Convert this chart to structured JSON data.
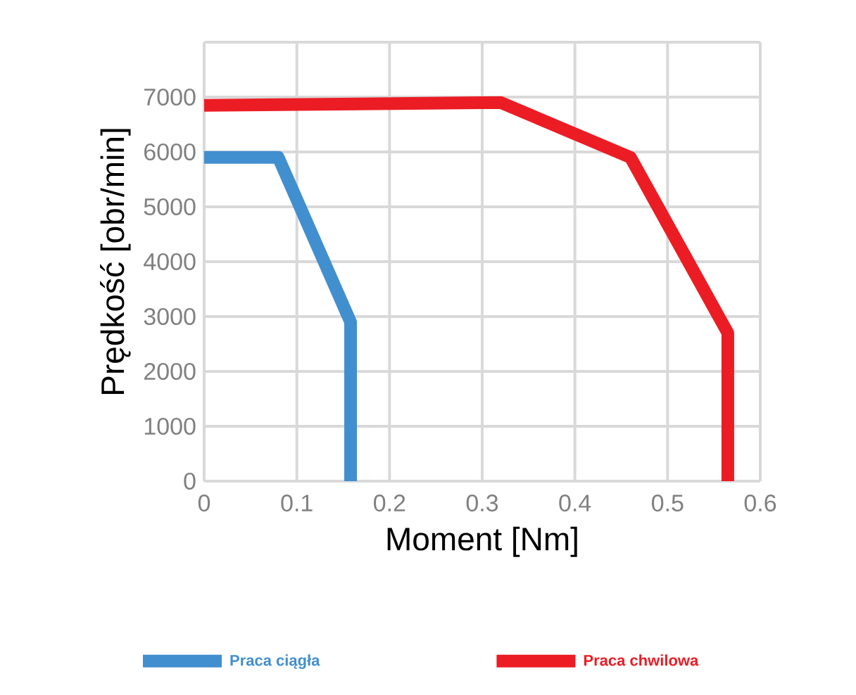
{
  "chart_data": {
    "type": "line",
    "xlabel": "Moment [Nm]",
    "ylabel": "Prędkość [obr/min]",
    "xlim": [
      0,
      0.6
    ],
    "xticks": [
      0,
      0.1,
      0.2,
      0.3,
      0.4,
      0.5,
      0.6
    ],
    "ylim": [
      0,
      8000
    ],
    "yticks": [
      0,
      1000,
      2000,
      3000,
      4000,
      5000,
      6000,
      7000,
      {
        "value": 8000,
        "label": null
      }
    ],
    "grid": true,
    "legend": "bottom",
    "series": [
      {
        "name": "Praca ciągła",
        "color": "#428fcf",
        "x": [
          0,
          0.08,
          0.158,
          0.158
        ],
        "values": [
          5900,
          5900,
          2900,
          0
        ]
      },
      {
        "name": "Praca chwilowa",
        "color": "#ec1c24",
        "x": [
          0,
          0.32,
          0.46,
          0.565,
          0.565
        ],
        "values": [
          6850,
          6900,
          5900,
          2700,
          0
        ]
      }
    ]
  }
}
